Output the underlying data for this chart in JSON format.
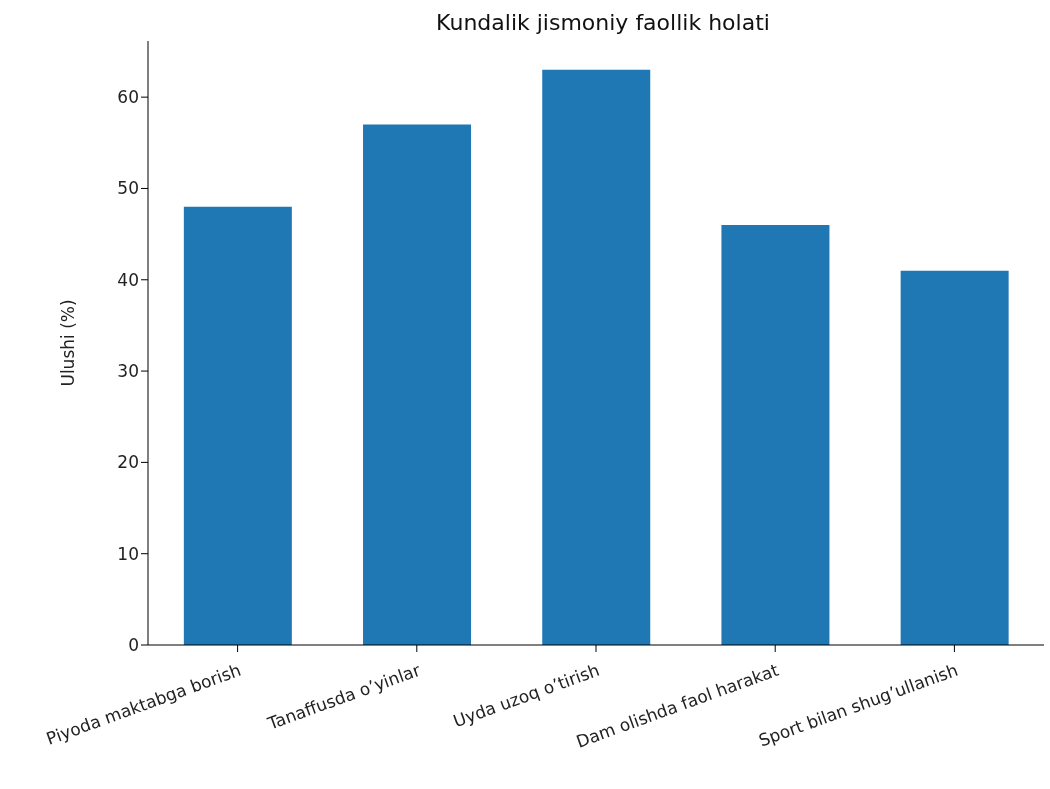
{
  "chart_data": {
    "type": "bar",
    "title": "Kundalik jismoniy faollik holati",
    "ylabel": "Ulushi (%)",
    "categories": [
      "Piyoda maktabga borish",
      "Tanaffusda o’yinlar",
      "Uyda uzoq o’tirish",
      "Dam olishda faol harakat",
      "Sport bilan shug’ullanish"
    ],
    "values": [
      48,
      57,
      63,
      46,
      41
    ],
    "color": "#1f77b4",
    "ylim": [
      0,
      66.15
    ],
    "yticks": [
      0,
      10,
      20,
      30,
      40,
      50,
      60
    ],
    "grid": false,
    "legend": false
  }
}
